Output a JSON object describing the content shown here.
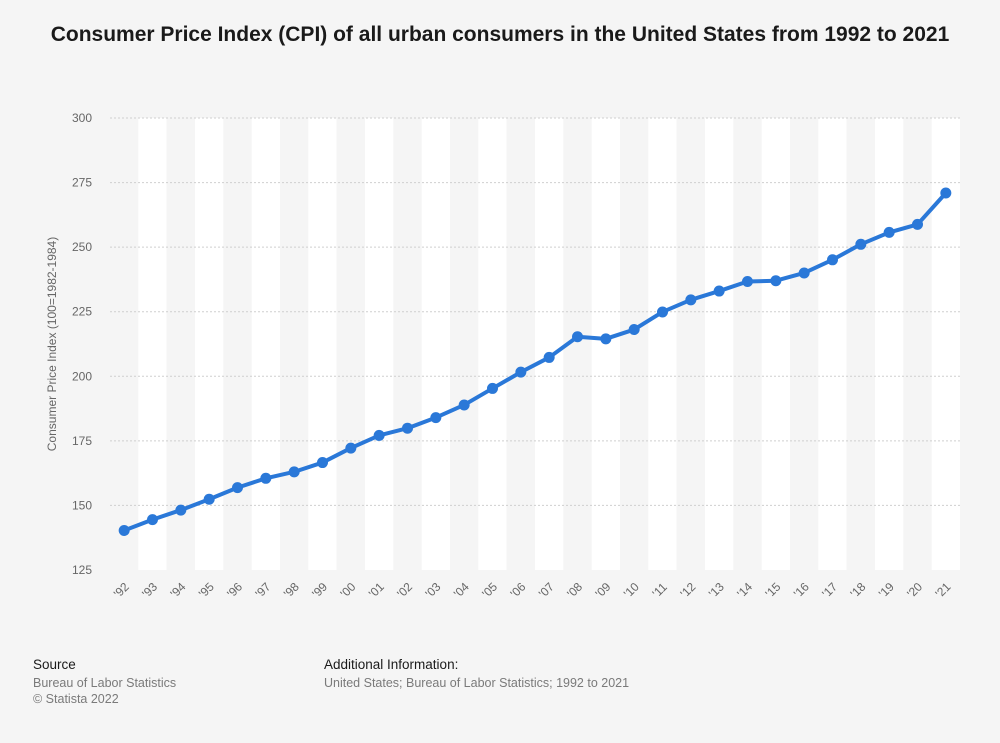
{
  "chart_data": {
    "type": "line",
    "title": "Consumer Price Index (CPI) of all urban consumers in the United States from 1992 to 2021",
    "ylabel": "Consumer Price Index (100=1982-1984)",
    "xlabel": "",
    "categories": [
      "'92",
      "'93",
      "'94",
      "'95",
      "'96",
      "'97",
      "'98",
      "'99",
      "'00",
      "'01",
      "'02",
      "'03",
      "'04",
      "'05",
      "'06",
      "'07",
      "'08",
      "'09",
      "'10",
      "'11",
      "'12",
      "'13",
      "'14",
      "'15",
      "'16",
      "'17",
      "'18",
      "'19",
      "'20",
      "'21"
    ],
    "series": [
      {
        "values": [
          140.3,
          144.5,
          148.2,
          152.4,
          156.9,
          160.5,
          163.0,
          166.6,
          172.2,
          177.1,
          179.9,
          184.0,
          188.9,
          195.3,
          201.6,
          207.3,
          215.3,
          214.5,
          218.1,
          224.9,
          229.6,
          233.0,
          236.7,
          237.0,
          240.0,
          245.1,
          251.1,
          255.7,
          258.8,
          270.97
        ],
        "color": "#2a78d8"
      }
    ],
    "ylim": [
      125,
      300
    ],
    "yticks": [
      125,
      150,
      175,
      200,
      225,
      250,
      275,
      300
    ],
    "grid": true,
    "legend": "none"
  },
  "footer": {
    "source_heading": "Source",
    "source_lines": [
      "Bureau of Labor Statistics",
      "© Statista 2022"
    ],
    "info_heading": "Additional Information:",
    "info_lines": [
      "United States; Bureau of Labor Statistics; 1992 to 2021"
    ]
  }
}
